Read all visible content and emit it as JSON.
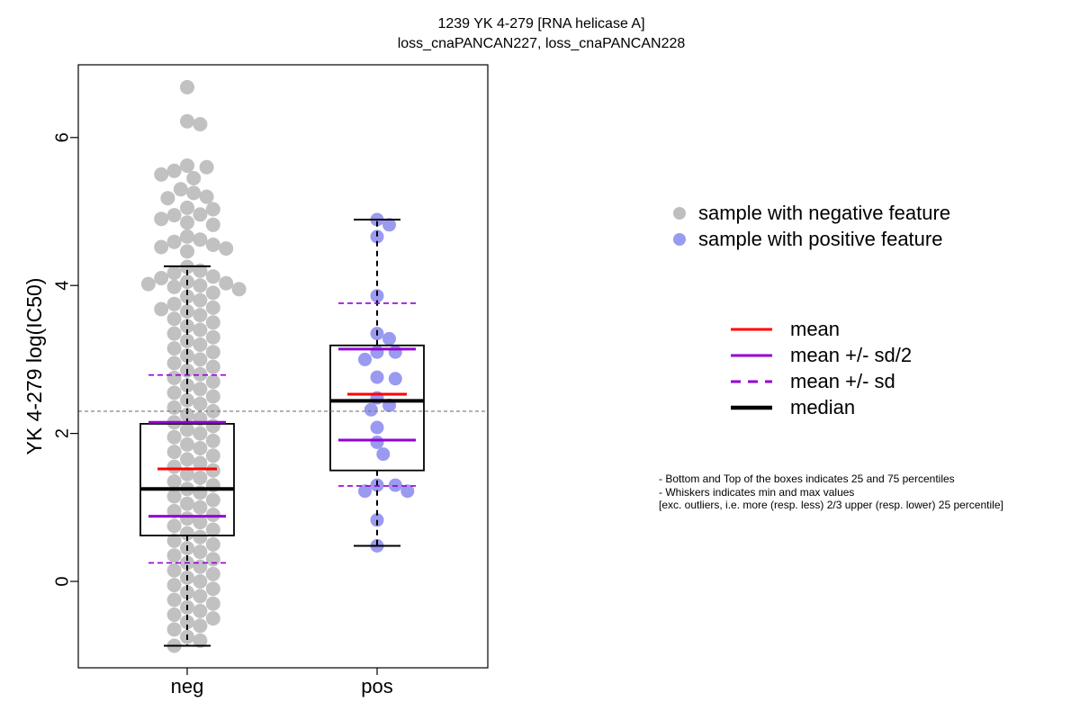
{
  "title_line1": "1239 YK 4-279 [RNA helicase A]",
  "title_line2": "loss_cnaPANCAN227, loss_cnaPANCAN228",
  "legend_points": [
    {
      "label": "sample with negative feature",
      "color": "#bebebe"
    },
    {
      "label": "sample with positive feature",
      "color": "#9a9af0"
    }
  ],
  "legend_lines": [
    {
      "label": "mean",
      "color": "#ff0000",
      "style": "solid"
    },
    {
      "label": "mean +/- sd/2",
      "color": "#9400d3",
      "style": "solid"
    },
    {
      "label": "mean +/- sd",
      "color": "#9400d3",
      "style": "dashed"
    },
    {
      "label": "median",
      "color": "#000000",
      "style": "solid-thick"
    }
  ],
  "notes": [
    "- Bottom and Top of the boxes indicates 25 and 75 percentiles",
    "- Whiskers indicates min and max values",
    "[exc. outliers, i.e. more (resp. less) 2/3 upper (resp. lower) 25 percentile]"
  ],
  "chart_data": {
    "type": "boxplot",
    "title": "1239 YK 4-279 [RNA helicase A]",
    "subtitle": "loss_cnaPANCAN227, loss_cnaPANCAN228",
    "xlabel": "",
    "ylabel": "YK 4-279 log(IC50)",
    "categories": [
      "neg",
      "pos"
    ],
    "ylim": [
      -1.2,
      6.85
    ],
    "yticks": [
      0,
      2,
      4,
      6
    ],
    "reference_line_y": 2.3,
    "groups": [
      {
        "name": "neg",
        "color": "#bebebe",
        "whisker_low": -0.87,
        "q1": 0.62,
        "median": 1.25,
        "q3": 2.13,
        "whisker_high": 4.26,
        "mean": 1.52,
        "mean_minus_half_sd": 0.88,
        "mean_plus_half_sd": 2.15,
        "mean_minus_sd": 0.25,
        "mean_plus_sd": 2.79,
        "points": [
          6.68,
          6.22,
          6.18,
          5.62,
          5.6,
          5.55,
          5.5,
          5.45,
          5.3,
          5.25,
          5.2,
          5.18,
          5.05,
          5.03,
          4.96,
          4.95,
          4.9,
          4.85,
          4.82,
          4.66,
          4.62,
          4.59,
          4.55,
          4.52,
          4.5,
          4.46,
          4.25,
          4.2,
          4.17,
          4.12,
          4.1,
          4.05,
          4.03,
          4.02,
          4.0,
          3.98,
          3.95,
          3.9,
          3.85,
          3.8,
          3.75,
          3.7,
          3.68,
          3.65,
          3.6,
          3.55,
          3.5,
          3.45,
          3.4,
          3.35,
          3.3,
          3.25,
          3.2,
          3.15,
          3.1,
          3.05,
          3.0,
          2.95,
          2.9,
          2.85,
          2.8,
          2.75,
          2.7,
          2.65,
          2.6,
          2.55,
          2.5,
          2.45,
          2.4,
          2.35,
          2.3,
          2.25,
          2.2,
          2.15,
          2.1,
          2.05,
          2.0,
          1.95,
          1.9,
          1.85,
          1.8,
          1.75,
          1.7,
          1.65,
          1.6,
          1.55,
          1.5,
          1.45,
          1.4,
          1.35,
          1.3,
          1.25,
          1.2,
          1.15,
          1.1,
          1.05,
          1.0,
          0.95,
          0.9,
          0.85,
          0.8,
          0.75,
          0.7,
          0.65,
          0.6,
          0.55,
          0.5,
          0.45,
          0.4,
          0.35,
          0.3,
          0.25,
          0.2,
          0.15,
          0.1,
          0.05,
          0.0,
          -0.05,
          -0.1,
          -0.15,
          -0.2,
          -0.25,
          -0.3,
          -0.35,
          -0.4,
          -0.45,
          -0.5,
          -0.55,
          -0.6,
          -0.65,
          -0.75,
          -0.8,
          -0.87
        ]
      },
      {
        "name": "pos",
        "color": "#9a9af0",
        "whisker_low": 0.48,
        "q1": 1.5,
        "median": 2.44,
        "q3": 3.19,
        "whisker_high": 4.89,
        "mean": 2.53,
        "mean_minus_half_sd": 1.91,
        "mean_plus_half_sd": 3.14,
        "mean_minus_sd": 1.29,
        "mean_plus_sd": 3.76,
        "points": [
          4.89,
          4.82,
          4.66,
          3.86,
          3.35,
          3.28,
          3.1,
          3.1,
          3.0,
          2.76,
          2.74,
          2.48,
          2.38,
          2.32,
          2.08,
          1.88,
          1.72,
          1.3,
          1.3,
          1.22,
          1.22,
          0.83,
          0.48
        ]
      }
    ]
  }
}
